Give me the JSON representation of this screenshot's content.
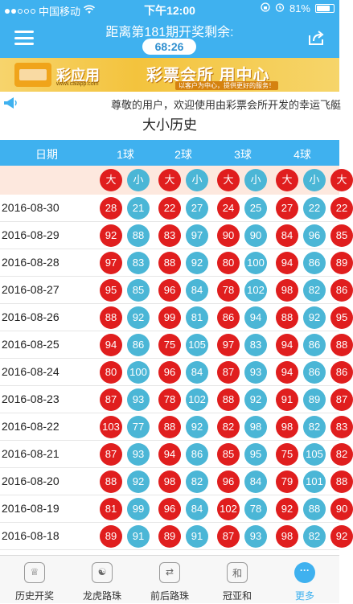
{
  "status": {
    "carrier": "中国移动",
    "time": "下午12:00",
    "battery": "81%",
    "battery_level": 0.81
  },
  "header": {
    "countdown_label": "距离第181期开奖剩余:",
    "countdown": "68:26"
  },
  "banner": {
    "brand": "彩应用",
    "brand_url": "www.caiapp.com",
    "slogan": "彩票会所 用中心",
    "slogan_sub": "以客户为中心，提供更好的服务！"
  },
  "notice": {
    "text": "尊敬的用户，欢迎使用由彩票会所开发的幸运飞艇"
  },
  "page_title": "大小历史",
  "table": {
    "date_header": "日期",
    "columns": [
      "1球",
      "2球",
      "3球",
      "4球"
    ],
    "big_label": "大",
    "small_label": "小",
    "rows": [
      {
        "date": "2016-08-30",
        "vals": [
          "28",
          "21",
          "22",
          "27",
          "24",
          "25",
          "27",
          "22",
          "22"
        ]
      },
      {
        "date": "2016-08-29",
        "vals": [
          "92",
          "88",
          "83",
          "97",
          "90",
          "90",
          "84",
          "96",
          "85"
        ]
      },
      {
        "date": "2016-08-28",
        "vals": [
          "97",
          "83",
          "88",
          "92",
          "80",
          "100",
          "94",
          "86",
          "89"
        ]
      },
      {
        "date": "2016-08-27",
        "vals": [
          "95",
          "85",
          "96",
          "84",
          "78",
          "102",
          "98",
          "82",
          "86"
        ]
      },
      {
        "date": "2016-08-26",
        "vals": [
          "88",
          "92",
          "99",
          "81",
          "86",
          "94",
          "88",
          "92",
          "95"
        ]
      },
      {
        "date": "2016-08-25",
        "vals": [
          "94",
          "86",
          "75",
          "105",
          "97",
          "83",
          "94",
          "86",
          "88"
        ]
      },
      {
        "date": "2016-08-24",
        "vals": [
          "80",
          "100",
          "96",
          "84",
          "87",
          "93",
          "94",
          "86",
          "86"
        ]
      },
      {
        "date": "2016-08-23",
        "vals": [
          "87",
          "93",
          "78",
          "102",
          "88",
          "92",
          "91",
          "89",
          "87"
        ]
      },
      {
        "date": "2016-08-22",
        "vals": [
          "103",
          "77",
          "88",
          "92",
          "82",
          "98",
          "98",
          "82",
          "83"
        ]
      },
      {
        "date": "2016-08-21",
        "vals": [
          "87",
          "93",
          "94",
          "86",
          "85",
          "95",
          "75",
          "105",
          "82"
        ]
      },
      {
        "date": "2016-08-20",
        "vals": [
          "88",
          "92",
          "98",
          "82",
          "96",
          "84",
          "79",
          "101",
          "88"
        ]
      },
      {
        "date": "2016-08-19",
        "vals": [
          "81",
          "99",
          "96",
          "84",
          "102",
          "78",
          "92",
          "88",
          "90"
        ]
      },
      {
        "date": "2016-08-18",
        "vals": [
          "89",
          "91",
          "89",
          "91",
          "87",
          "93",
          "98",
          "82",
          "92"
        ]
      }
    ]
  },
  "tabs": [
    {
      "label": "历史开奖",
      "icon": "trophy-icon",
      "glyph": "♕"
    },
    {
      "label": "龙虎路珠",
      "icon": "dragon-tiger-icon",
      "glyph": "☯"
    },
    {
      "label": "前后路珠",
      "icon": "front-back-icon",
      "glyph": "⇄"
    },
    {
      "label": "冠亚和",
      "icon": "sum-icon",
      "glyph": "和"
    },
    {
      "label": "更多",
      "icon": "more-icon",
      "glyph": "···"
    }
  ],
  "colors": {
    "accent": "#3fb1ef",
    "big": "#e01e1e",
    "small": "#4bb6d6",
    "subhead_bg": "#fde8de"
  }
}
